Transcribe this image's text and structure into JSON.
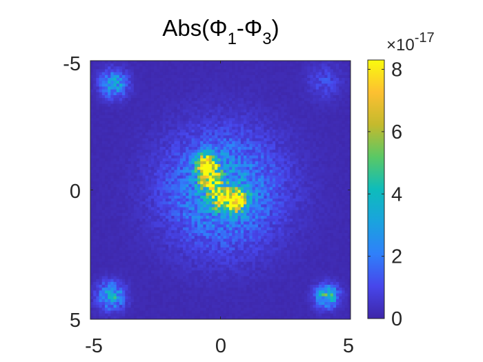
{
  "chart_data": {
    "type": "heatmap",
    "title": {
      "prefix": "Abs(",
      "phi_a": "Φ",
      "sub_a": "1",
      "minus": "-",
      "phi_b": "Φ",
      "sub_b": "3",
      "suffix": ")"
    },
    "xlabel": "",
    "ylabel": "",
    "x_ticks": [
      "-5",
      "0",
      "5"
    ],
    "y_ticks": [
      "-5",
      "0",
      "5"
    ],
    "xlim": [
      -5,
      5
    ],
    "ylim": [
      -5,
      5
    ],
    "y_axis_reversed": true,
    "colorbar": {
      "ticks": [
        "0",
        "2",
        "4",
        "6",
        "8"
      ],
      "clim": [
        0,
        8.3
      ],
      "multiplier": "×10",
      "exponent": "-17",
      "colormap": "parula"
    },
    "colors": {
      "background_low": "#3e26a8",
      "peak": "#f9fb0e"
    },
    "grid": false,
    "hotspots": [
      {
        "x": -4.1,
        "y": -4.1,
        "peak": 3.5,
        "spread": 0.35
      },
      {
        "x": 4.0,
        "y": -4.2,
        "peak": 1.0,
        "spread": 0.45
      },
      {
        "x": -4.2,
        "y": 4.1,
        "peak": 3.8,
        "spread": 0.35
      },
      {
        "x": 4.1,
        "y": 4.1,
        "peak": 4.5,
        "spread": 0.3
      },
      {
        "x": -0.5,
        "y": -1.0,
        "peak": 7.8,
        "spread": 0.28
      },
      {
        "x": -0.4,
        "y": -0.4,
        "peak": 6.5,
        "spread": 0.28
      },
      {
        "x": 0.0,
        "y": 0.3,
        "peak": 6.0,
        "spread": 0.28
      },
      {
        "x": 0.6,
        "y": 0.4,
        "peak": 7.0,
        "spread": 0.3
      },
      {
        "x": 0.1,
        "y": 0.0,
        "peak": 3.0,
        "spread": 1.5
      }
    ]
  }
}
